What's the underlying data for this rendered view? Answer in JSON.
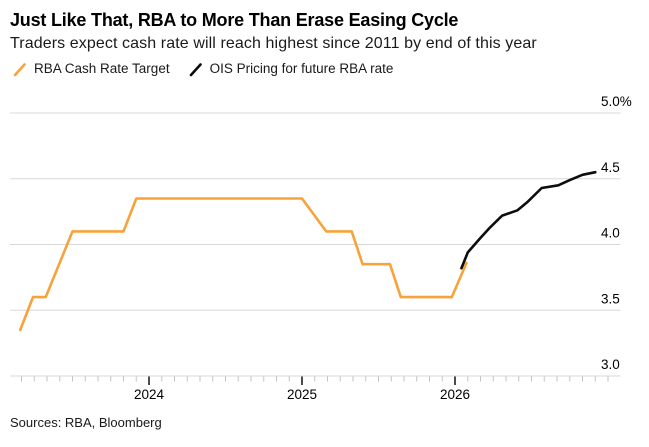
{
  "header": {
    "title": "Just Like That, RBA to More Than Erase Easing Cycle",
    "subtitle": "Traders expect cash rate will reach highest since 2011 by end of this year"
  },
  "legend": {
    "items": [
      {
        "label": "RBA Cash Rate Target",
        "color": "#F7A33C",
        "marker": "slash-icon"
      },
      {
        "label": "OIS Pricing for future RBA rate",
        "color": "#0D0D0D",
        "marker": "slash-icon"
      }
    ]
  },
  "footer": {
    "source": "Sources: RBA, Bloomberg"
  },
  "chart_data": {
    "type": "line",
    "title": "Just Like That, RBA to More Than Erase Easing Cycle",
    "subtitle": "Traders expect cash rate will reach highest since 2011 by end of this year",
    "x_unit": "months relative to Jan 2024 tick",
    "xlim": [
      -10.9,
      37
    ],
    "ylim": [
      3.0,
      5.0
    ],
    "grid": "horizontal",
    "legend_position": "top-left",
    "x_ticks": [
      {
        "label": "2024",
        "m": 0
      },
      {
        "label": "2025",
        "m": 12
      },
      {
        "label": "2026",
        "m": 24
      }
    ],
    "minor_x_ticks": {
      "from_month": -10,
      "to_month": 36,
      "step": 1
    },
    "y_ticks": [
      {
        "label": "3.0",
        "v": 3.0
      },
      {
        "label": "3.5",
        "v": 3.5
      },
      {
        "label": "4.0",
        "v": 4.0
      },
      {
        "label": "4.5",
        "v": 4.5
      },
      {
        "label": "5.0%",
        "v": 5.0
      }
    ],
    "series": [
      {
        "name": "RBA Cash Rate Target",
        "color": "#F7A33C",
        "style": "monthly-steps",
        "points": [
          [
            -10.1,
            3.35
          ],
          [
            -9.1,
            3.6
          ],
          [
            -8.1,
            3.6
          ],
          [
            -6.0,
            4.1
          ],
          [
            -2.0,
            4.1
          ],
          [
            -1.0,
            4.35
          ],
          [
            12.0,
            4.35
          ],
          [
            13.9,
            4.1
          ],
          [
            15.9,
            4.1
          ],
          [
            16.75,
            3.85
          ],
          [
            18.9,
            3.85
          ],
          [
            19.75,
            3.6
          ],
          [
            23.75,
            3.6
          ],
          [
            24.9,
            3.86
          ]
        ]
      },
      {
        "name": "OIS Pricing for future RBA rate",
        "color": "#0D0D0D",
        "style": "curve",
        "points": [
          [
            24.5,
            3.82
          ],
          [
            25.0,
            3.94
          ],
          [
            26.0,
            4.05
          ],
          [
            26.75,
            4.13
          ],
          [
            27.7,
            4.22
          ],
          [
            28.9,
            4.26
          ],
          [
            29.65,
            4.32
          ],
          [
            30.8,
            4.43
          ],
          [
            32.1,
            4.45
          ],
          [
            33.0,
            4.49
          ],
          [
            34.0,
            4.53
          ],
          [
            35.0,
            4.55
          ]
        ]
      }
    ]
  }
}
